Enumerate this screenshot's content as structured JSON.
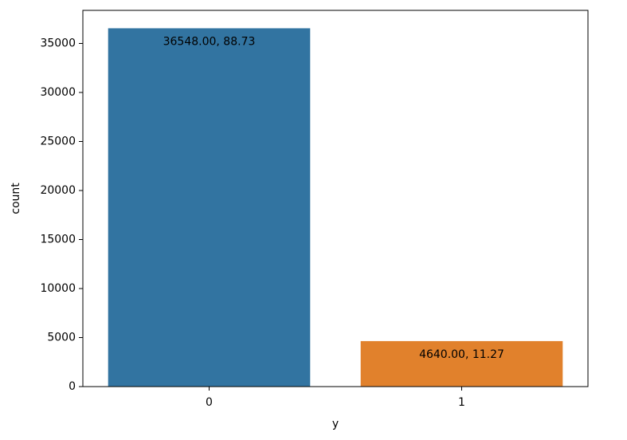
{
  "chart_data": {
    "type": "bar",
    "x_label": "y",
    "y_label": "count",
    "categories": [
      "0",
      "1"
    ],
    "values": [
      36548,
      4640
    ],
    "value_labels": [
      "36548.00, 88.73",
      "4640.00, 11.27"
    ],
    "colors": [
      "#3274a1",
      "#e1812c"
    ],
    "ylim": [
      0,
      38375
    ],
    "yticks": [
      0,
      5000,
      10000,
      15000,
      20000,
      25000,
      30000,
      35000
    ],
    "grid": false
  }
}
